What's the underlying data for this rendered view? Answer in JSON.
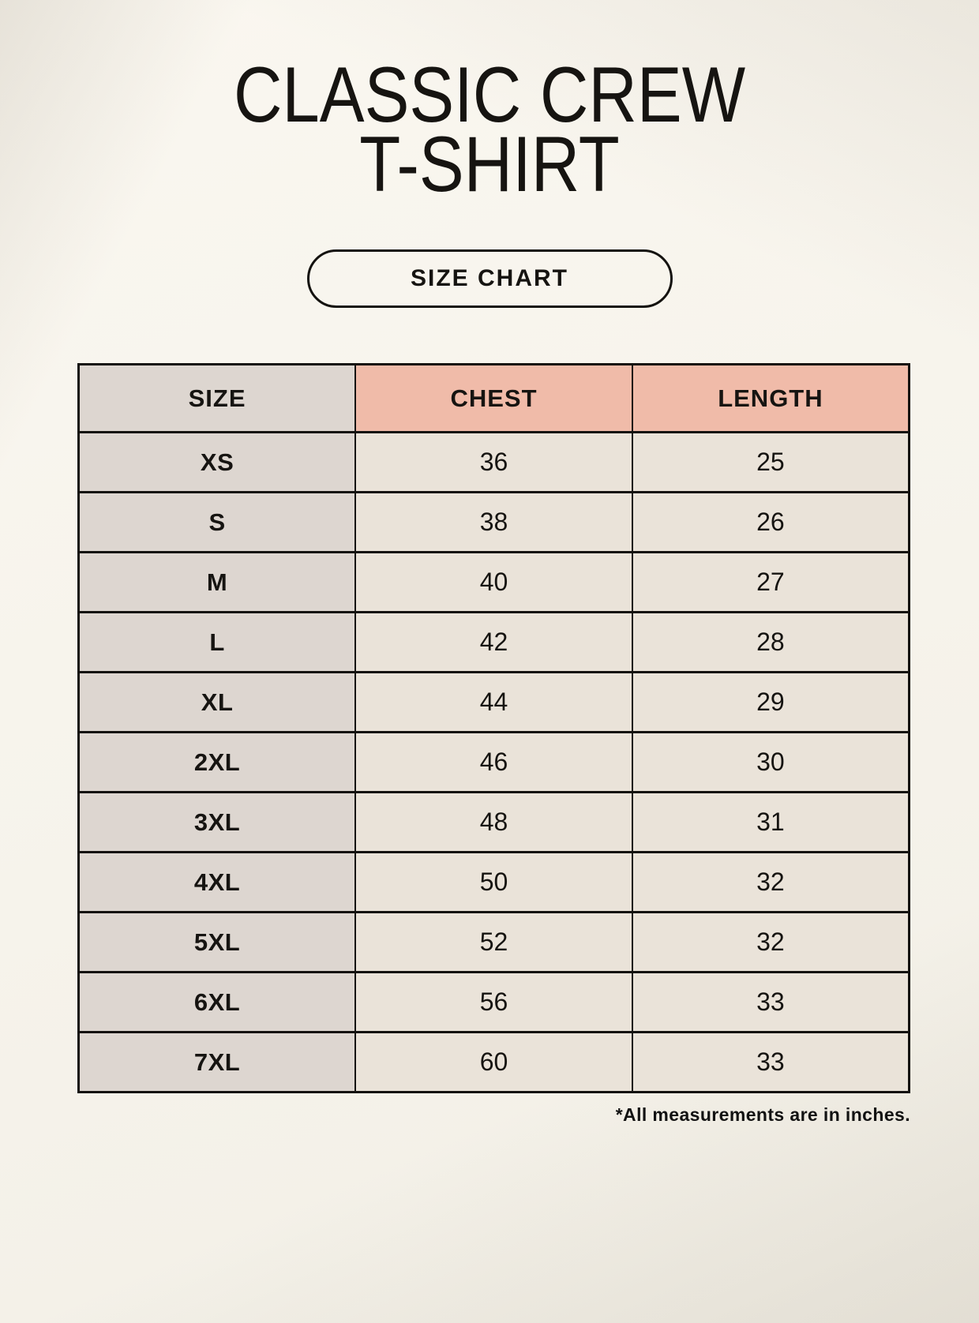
{
  "header": {
    "title_line1": "CLASSIC CREW",
    "title_line2": "T-SHIRT",
    "badge_label": "SIZE CHART"
  },
  "table": {
    "columns": [
      "SIZE",
      "CHEST",
      "LENGTH"
    ],
    "rows": [
      {
        "size": "XS",
        "chest": "36",
        "length": "25"
      },
      {
        "size": "S",
        "chest": "38",
        "length": "26"
      },
      {
        "size": "M",
        "chest": "40",
        "length": "27"
      },
      {
        "size": "L",
        "chest": "42",
        "length": "28"
      },
      {
        "size": "XL",
        "chest": "44",
        "length": "29"
      },
      {
        "size": "2XL",
        "chest": "46",
        "length": "30"
      },
      {
        "size": "3XL",
        "chest": "48",
        "length": "31"
      },
      {
        "size": "4XL",
        "chest": "50",
        "length": "32"
      },
      {
        "size": "5XL",
        "chest": "52",
        "length": "32"
      },
      {
        "size": "6XL",
        "chest": "56",
        "length": "33"
      },
      {
        "size": "7XL",
        "chest": "60",
        "length": "33"
      }
    ]
  },
  "footnote": "*All measurements are in inches.",
  "colors": {
    "bg": "#f5f2ea",
    "ink": "#161411",
    "accent": "#f0bba9",
    "panel-gray": "#ddd6d0",
    "cell": "#eae3d9",
    "line": "#14120f"
  },
  "chart_data": {
    "type": "table",
    "title": "CLASSIC CREW T-SHIRT",
    "subtitle": "SIZE CHART",
    "columns": [
      "SIZE",
      "CHEST",
      "LENGTH"
    ],
    "rows": [
      [
        "XS",
        36,
        25
      ],
      [
        "S",
        38,
        26
      ],
      [
        "M",
        40,
        27
      ],
      [
        "L",
        42,
        28
      ],
      [
        "XL",
        44,
        29
      ],
      [
        "2XL",
        46,
        30
      ],
      [
        "3XL",
        48,
        31
      ],
      [
        "4XL",
        50,
        32
      ],
      [
        "5XL",
        52,
        32
      ],
      [
        "6XL",
        56,
        33
      ],
      [
        "7XL",
        60,
        33
      ]
    ],
    "note": "*All measurements are in inches.",
    "layout_hints": {
      "header_accent_columns": [
        "CHEST",
        "LENGTH"
      ],
      "size_column_shaded": true,
      "grid": true
    }
  }
}
